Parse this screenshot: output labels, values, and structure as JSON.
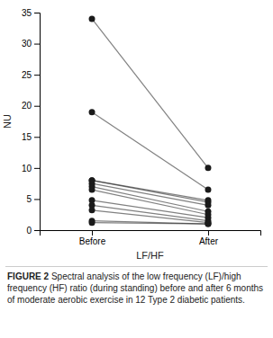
{
  "chart_data": {
    "type": "line",
    "marker": "circle",
    "color": "#1a1a1a",
    "title": "FIGURE 2",
    "subtitle": "Spectral analysis of the low frequency (LF)/high frequency (HF) ratio (during standing) before and after 6 months of moderate aerobic exercise in 12 Type 2 diabetic patients.",
    "xlabel": "LF/HF",
    "ylabel": "NU",
    "categories": [
      "Before",
      "After"
    ],
    "series": [
      {
        "values": [
          34,
          10
        ]
      },
      {
        "values": [
          19,
          6.5
        ]
      },
      {
        "values": [
          8,
          4.8
        ]
      },
      {
        "values": [
          8,
          4.5
        ]
      },
      {
        "values": [
          7.5,
          4
        ]
      },
      {
        "values": [
          7,
          3
        ]
      },
      {
        "values": [
          6.5,
          2.5
        ]
      },
      {
        "values": [
          4.8,
          2
        ]
      },
      {
        "values": [
          4,
          1.5
        ]
      },
      {
        "values": [
          3.2,
          1.2
        ]
      },
      {
        "values": [
          1.5,
          1
        ]
      },
      {
        "values": [
          1.2,
          1
        ]
      }
    ],
    "ylim": [
      0,
      35
    ],
    "yticks": [
      0,
      5,
      10,
      15,
      20,
      25,
      30,
      35
    ],
    "grid": false
  }
}
